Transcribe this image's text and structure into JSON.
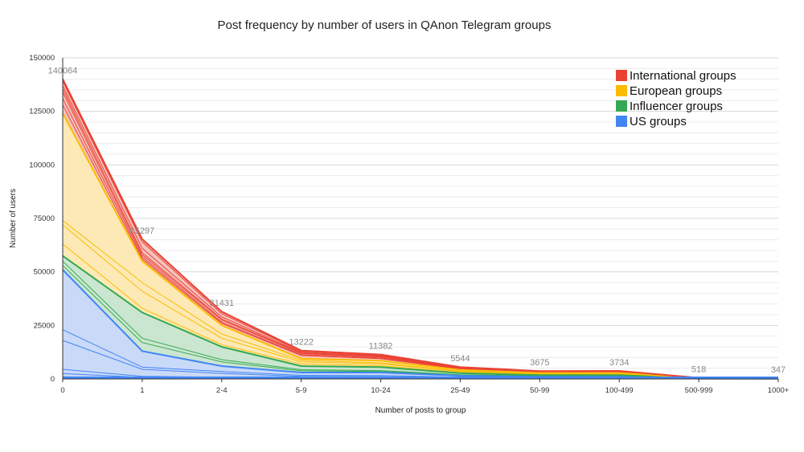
{
  "chart_data": {
    "type": "area",
    "title": "Post frequency by number of users in QAnon Telegram groups",
    "xlabel": "Number of posts to group",
    "ylabel": "Number of users",
    "categories": [
      "0",
      "1",
      "2-4",
      "5-9",
      "10-24",
      "25-49",
      "50-99",
      "100-499",
      "500-999",
      "1000+"
    ],
    "ylim": [
      0,
      150000
    ],
    "yticks": [
      0,
      25000,
      50000,
      75000,
      100000,
      125000,
      150000
    ],
    "ytick_labels": [
      "0",
      "25000",
      "50000",
      "75000",
      "100000",
      "125000",
      "150000"
    ],
    "stacked": true,
    "grid": true,
    "legend_position": "top-right",
    "totals": [
      140064,
      65297,
      31431,
      13222,
      11382,
      5544,
      3675,
      3734,
      518,
      347
    ],
    "total_labels": [
      "140064",
      "65297",
      "31431",
      "13222",
      "11382",
      "5544",
      "3675",
      "3734",
      "518",
      "347"
    ],
    "series": [
      {
        "name": "US groups",
        "color": "#4285f4",
        "fill": "#c9d9f8",
        "values": [
          51000,
          13000,
          6000,
          3000,
          3000,
          1500,
          1000,
          1000,
          150,
          100
        ],
        "inner_lines": [
          [
            1000,
            200,
            150,
            100,
            100,
            50,
            30,
            30,
            5,
            5
          ],
          [
            2500,
            700,
            500,
            300,
            300,
            150,
            100,
            100,
            15,
            10
          ],
          [
            4500,
            1200,
            800,
            500,
            450,
            250,
            150,
            150,
            25,
            20
          ],
          [
            18000,
            4500,
            2600,
            1200,
            1100,
            600,
            400,
            400,
            60,
            40
          ],
          [
            23000,
            5500,
            3500,
            1700,
            1600,
            800,
            550,
            550,
            80,
            55
          ]
        ]
      },
      {
        "name": "Influencer groups",
        "color": "#34a853",
        "fill": "#cbe6d0",
        "values": [
          6500,
          18000,
          9000,
          3000,
          2500,
          1200,
          800,
          800,
          110,
          75
        ],
        "inner_lines": [
          [
            53000,
            17000,
            8000,
            3800,
            3500,
            1800,
            1200,
            1200,
            170,
            120
          ],
          [
            55000,
            19000,
            9000,
            4300,
            3900,
            2000,
            1350,
            1350,
            190,
            130
          ]
        ]
      },
      {
        "name": "European groups",
        "color": "#fbbc04",
        "fill": "#fce9b5",
        "values": [
          66500,
          24000,
          10000,
          3500,
          3000,
          1500,
          1000,
          1000,
          140,
          95
        ],
        "inner_lines": [
          [
            63000,
            33000,
            16000,
            7000,
            6200,
            3000,
            2000,
            2000,
            270,
            185
          ],
          [
            72000,
            41000,
            19000,
            8000,
            7000,
            3400,
            2300,
            2300,
            310,
            210
          ],
          [
            74000,
            45000,
            21000,
            8700,
            7500,
            3700,
            2450,
            2450,
            335,
            225
          ]
        ]
      },
      {
        "name": "International groups",
        "color": "#ea4335",
        "fill": "#f5c2bd",
        "values": [
          16064,
          10297,
          6431,
          3722,
          2882,
          1344,
          875,
          934,
          118,
          77
        ],
        "inner_lines": [
          [
            128000,
            56000,
            26000,
            11000,
            9500,
            4600,
            3050,
            3100,
            430,
            290
          ],
          [
            131000,
            57000,
            26500,
            11300,
            9800,
            4750,
            3150,
            3200,
            445,
            300
          ],
          [
            134000,
            58000,
            27500,
            11800,
            10200,
            4950,
            3300,
            3350,
            462,
            310
          ],
          [
            135500,
            59000,
            28000,
            12100,
            10500,
            5100,
            3400,
            3450,
            475,
            320
          ],
          [
            137000,
            61000,
            29000,
            12500,
            10800,
            5250,
            3500,
            3550,
            490,
            330
          ],
          [
            139000,
            64000,
            30500,
            12900,
            11100,
            5400,
            3590,
            3650,
            505,
            340
          ]
        ]
      }
    ],
    "legend_order": [
      "International groups",
      "European groups",
      "Influencer groups",
      "US groups"
    ]
  }
}
